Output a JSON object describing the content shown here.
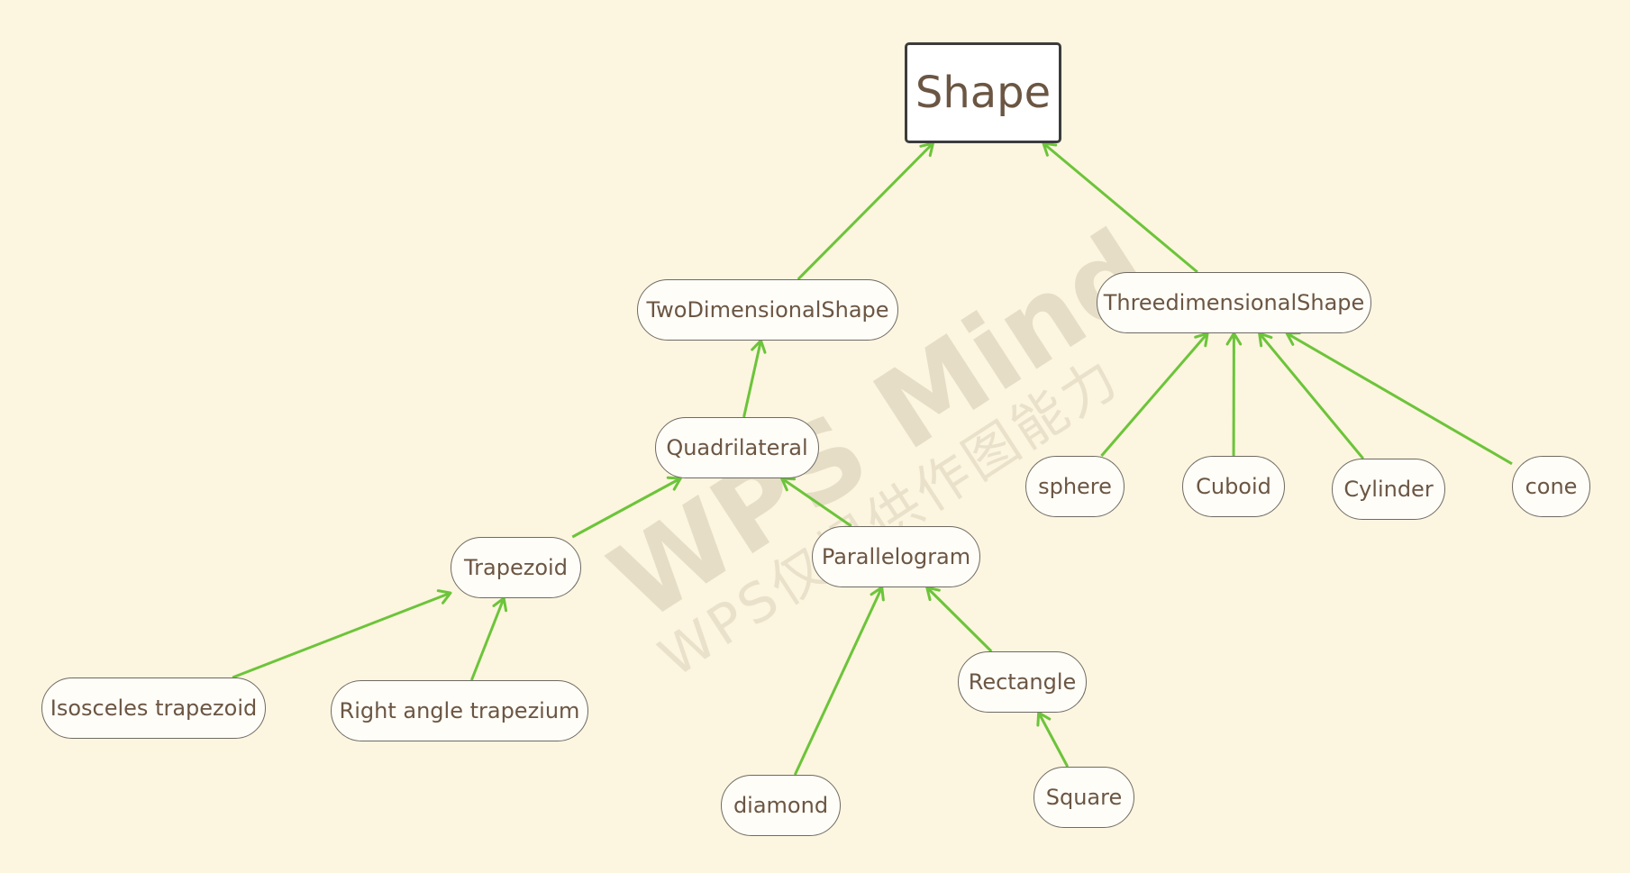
{
  "diagram": {
    "title": "Shape",
    "edge_color": "#6cc43a",
    "watermark": {
      "line1": "WPS Mind",
      "line2": "WPS仅提供作图能力"
    },
    "nodes": [
      {
        "id": "shape",
        "label": "Shape"
      },
      {
        "id": "two-dimensional-shape",
        "label": "TwoDimensionalShape"
      },
      {
        "id": "threedimensional-shape",
        "label": "ThreedimensionalShape"
      },
      {
        "id": "quadrilateral",
        "label": "Quadrilateral"
      },
      {
        "id": "trapezoid",
        "label": "Trapezoid"
      },
      {
        "id": "parallelogram",
        "label": "Parallelogram"
      },
      {
        "id": "isosceles-trapezoid",
        "label": "Isosceles trapezoid"
      },
      {
        "id": "right-angle-trapezium",
        "label": "Right angle trapezium"
      },
      {
        "id": "diamond",
        "label": "diamond"
      },
      {
        "id": "rectangle",
        "label": "Rectangle"
      },
      {
        "id": "square",
        "label": "Square"
      },
      {
        "id": "sphere",
        "label": "sphere"
      },
      {
        "id": "cuboid",
        "label": "Cuboid"
      },
      {
        "id": "cylinder",
        "label": "Cylinder"
      },
      {
        "id": "cone",
        "label": "cone"
      }
    ],
    "edges": [
      {
        "from": "two-dimensional-shape",
        "to": "shape"
      },
      {
        "from": "threedimensional-shape",
        "to": "shape"
      },
      {
        "from": "quadrilateral",
        "to": "two-dimensional-shape"
      },
      {
        "from": "trapezoid",
        "to": "quadrilateral"
      },
      {
        "from": "parallelogram",
        "to": "quadrilateral"
      },
      {
        "from": "isosceles-trapezoid",
        "to": "trapezoid"
      },
      {
        "from": "right-angle-trapezium",
        "to": "trapezoid"
      },
      {
        "from": "diamond",
        "to": "parallelogram"
      },
      {
        "from": "rectangle",
        "to": "parallelogram"
      },
      {
        "from": "square",
        "to": "rectangle"
      },
      {
        "from": "sphere",
        "to": "threedimensional-shape"
      },
      {
        "from": "cuboid",
        "to": "threedimensional-shape"
      },
      {
        "from": "cylinder",
        "to": "threedimensional-shape"
      },
      {
        "from": "cone",
        "to": "threedimensional-shape"
      }
    ]
  }
}
